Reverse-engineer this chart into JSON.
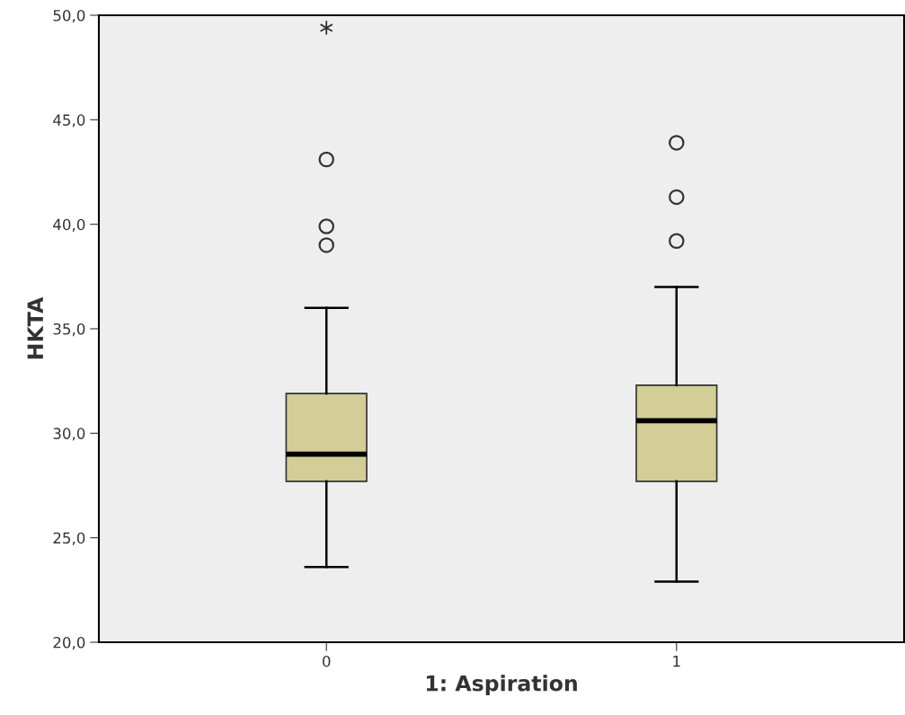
{
  "chart_data": {
    "type": "box",
    "xlabel": "1: Aspiration",
    "ylabel": "HKTA",
    "categories": [
      "0",
      "1"
    ],
    "boxes": [
      {
        "low": 23.6,
        "q1": 27.7,
        "median": 29.0,
        "q3": 31.9,
        "high": 36.0,
        "outliers": [
          39.0,
          39.9,
          43.1,
          49.4
        ]
      },
      {
        "low": 22.9,
        "q1": 27.7,
        "median": 30.6,
        "q3": 32.3,
        "high": 37.0,
        "outliers": [
          39.2,
          41.3,
          43.9
        ]
      }
    ],
    "color": "#d3cd98",
    "ylim": [
      20,
      50
    ],
    "yticks": [
      {
        "value": 20,
        "label": "20,0"
      },
      {
        "value": 25,
        "label": "25,0"
      },
      {
        "value": 30,
        "label": "30,0"
      },
      {
        "value": 35,
        "label": "35,0"
      },
      {
        "value": 40,
        "label": "40,0"
      },
      {
        "value": 45,
        "label": "45,0"
      },
      {
        "value": 50,
        "label": "50,0"
      }
    ],
    "grid": false
  }
}
